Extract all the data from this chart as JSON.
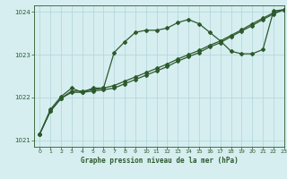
{
  "title": "Graphe pression niveau de la mer (hPa)",
  "background_color": "#d6eef0",
  "plot_bg_color": "#d6eef0",
  "grid_color": "#b0d4d8",
  "line_color": "#2d5a2d",
  "ylim": [
    1020.85,
    1024.15
  ],
  "xlim": [
    -0.5,
    23
  ],
  "yticks": [
    1021,
    1022,
    1023,
    1024
  ],
  "xticks": [
    0,
    1,
    2,
    3,
    4,
    5,
    6,
    7,
    8,
    9,
    10,
    11,
    12,
    13,
    14,
    15,
    16,
    17,
    18,
    19,
    20,
    21,
    22,
    23
  ],
  "line1_x": [
    0,
    1,
    2,
    3,
    4,
    5,
    6,
    7,
    8,
    9,
    10,
    11,
    12,
    13,
    14,
    15,
    16,
    17,
    18,
    19,
    20,
    21,
    22,
    23
  ],
  "line1_y": [
    1021.15,
    1021.72,
    1022.02,
    1022.22,
    1022.12,
    1022.22,
    1022.22,
    1023.05,
    1023.3,
    1023.52,
    1023.57,
    1023.57,
    1023.62,
    1023.75,
    1023.82,
    1023.72,
    1023.52,
    1023.32,
    1023.08,
    1023.02,
    1023.02,
    1023.12,
    1024.02,
    1024.05
  ],
  "line2_x": [
    0,
    1,
    2,
    3,
    4,
    5,
    6,
    7,
    8,
    9,
    10,
    11,
    12,
    13,
    14,
    15,
    16,
    17,
    18,
    19,
    20,
    21,
    22,
    23
  ],
  "line2_y": [
    1021.15,
    1021.68,
    1021.98,
    1022.15,
    1022.15,
    1022.18,
    1022.22,
    1022.28,
    1022.38,
    1022.48,
    1022.58,
    1022.68,
    1022.78,
    1022.9,
    1023.0,
    1023.1,
    1023.22,
    1023.32,
    1023.45,
    1023.58,
    1023.72,
    1023.85,
    1023.98,
    1024.05
  ],
  "line3_x": [
    0,
    1,
    2,
    3,
    4,
    5,
    6,
    7,
    8,
    9,
    10,
    11,
    12,
    13,
    14,
    15,
    16,
    17,
    18,
    19,
    20,
    21,
    22,
    23
  ],
  "line3_y": [
    1021.15,
    1021.68,
    1021.98,
    1022.12,
    1022.12,
    1022.15,
    1022.18,
    1022.22,
    1022.32,
    1022.42,
    1022.52,
    1022.62,
    1022.72,
    1022.85,
    1022.95,
    1023.05,
    1023.18,
    1023.28,
    1023.42,
    1023.55,
    1023.68,
    1023.82,
    1023.95,
    1024.05
  ]
}
